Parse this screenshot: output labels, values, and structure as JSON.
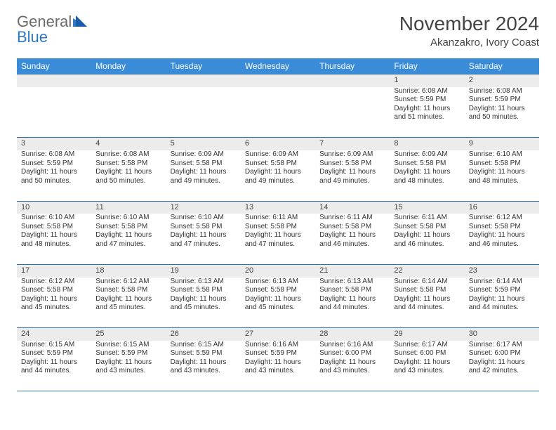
{
  "brand": {
    "general": "General",
    "blue": "Blue"
  },
  "title": "November 2024",
  "subtitle": "Akanzakro, Ivory Coast",
  "colors": {
    "header_bg": "#3a8bd8",
    "header_text": "#ffffff",
    "daynum_bg": "#ececec",
    "row_border": "#2f6fa8",
    "logo_blue": "#2f78c4",
    "text": "#333333"
  },
  "day_headers": [
    "Sunday",
    "Monday",
    "Tuesday",
    "Wednesday",
    "Thursday",
    "Friday",
    "Saturday"
  ],
  "weeks": [
    {
      "nums": [
        "",
        "",
        "",
        "",
        "",
        "1",
        "2"
      ],
      "cells": [
        {},
        {},
        {},
        {},
        {},
        {
          "sunrise": "Sunrise: 6:08 AM",
          "sunset": "Sunset: 5:59 PM",
          "daylight": "Daylight: 11 hours and 51 minutes."
        },
        {
          "sunrise": "Sunrise: 6:08 AM",
          "sunset": "Sunset: 5:59 PM",
          "daylight": "Daylight: 11 hours and 50 minutes."
        }
      ]
    },
    {
      "nums": [
        "3",
        "4",
        "5",
        "6",
        "7",
        "8",
        "9"
      ],
      "cells": [
        {
          "sunrise": "Sunrise: 6:08 AM",
          "sunset": "Sunset: 5:59 PM",
          "daylight": "Daylight: 11 hours and 50 minutes."
        },
        {
          "sunrise": "Sunrise: 6:08 AM",
          "sunset": "Sunset: 5:58 PM",
          "daylight": "Daylight: 11 hours and 50 minutes."
        },
        {
          "sunrise": "Sunrise: 6:09 AM",
          "sunset": "Sunset: 5:58 PM",
          "daylight": "Daylight: 11 hours and 49 minutes."
        },
        {
          "sunrise": "Sunrise: 6:09 AM",
          "sunset": "Sunset: 5:58 PM",
          "daylight": "Daylight: 11 hours and 49 minutes."
        },
        {
          "sunrise": "Sunrise: 6:09 AM",
          "sunset": "Sunset: 5:58 PM",
          "daylight": "Daylight: 11 hours and 49 minutes."
        },
        {
          "sunrise": "Sunrise: 6:09 AM",
          "sunset": "Sunset: 5:58 PM",
          "daylight": "Daylight: 11 hours and 48 minutes."
        },
        {
          "sunrise": "Sunrise: 6:10 AM",
          "sunset": "Sunset: 5:58 PM",
          "daylight": "Daylight: 11 hours and 48 minutes."
        }
      ]
    },
    {
      "nums": [
        "10",
        "11",
        "12",
        "13",
        "14",
        "15",
        "16"
      ],
      "cells": [
        {
          "sunrise": "Sunrise: 6:10 AM",
          "sunset": "Sunset: 5:58 PM",
          "daylight": "Daylight: 11 hours and 48 minutes."
        },
        {
          "sunrise": "Sunrise: 6:10 AM",
          "sunset": "Sunset: 5:58 PM",
          "daylight": "Daylight: 11 hours and 47 minutes."
        },
        {
          "sunrise": "Sunrise: 6:10 AM",
          "sunset": "Sunset: 5:58 PM",
          "daylight": "Daylight: 11 hours and 47 minutes."
        },
        {
          "sunrise": "Sunrise: 6:11 AM",
          "sunset": "Sunset: 5:58 PM",
          "daylight": "Daylight: 11 hours and 47 minutes."
        },
        {
          "sunrise": "Sunrise: 6:11 AM",
          "sunset": "Sunset: 5:58 PM",
          "daylight": "Daylight: 11 hours and 46 minutes."
        },
        {
          "sunrise": "Sunrise: 6:11 AM",
          "sunset": "Sunset: 5:58 PM",
          "daylight": "Daylight: 11 hours and 46 minutes."
        },
        {
          "sunrise": "Sunrise: 6:12 AM",
          "sunset": "Sunset: 5:58 PM",
          "daylight": "Daylight: 11 hours and 46 minutes."
        }
      ]
    },
    {
      "nums": [
        "17",
        "18",
        "19",
        "20",
        "21",
        "22",
        "23"
      ],
      "cells": [
        {
          "sunrise": "Sunrise: 6:12 AM",
          "sunset": "Sunset: 5:58 PM",
          "daylight": "Daylight: 11 hours and 45 minutes."
        },
        {
          "sunrise": "Sunrise: 6:12 AM",
          "sunset": "Sunset: 5:58 PM",
          "daylight": "Daylight: 11 hours and 45 minutes."
        },
        {
          "sunrise": "Sunrise: 6:13 AM",
          "sunset": "Sunset: 5:58 PM",
          "daylight": "Daylight: 11 hours and 45 minutes."
        },
        {
          "sunrise": "Sunrise: 6:13 AM",
          "sunset": "Sunset: 5:58 PM",
          "daylight": "Daylight: 11 hours and 45 minutes."
        },
        {
          "sunrise": "Sunrise: 6:13 AM",
          "sunset": "Sunset: 5:58 PM",
          "daylight": "Daylight: 11 hours and 44 minutes."
        },
        {
          "sunrise": "Sunrise: 6:14 AM",
          "sunset": "Sunset: 5:58 PM",
          "daylight": "Daylight: 11 hours and 44 minutes."
        },
        {
          "sunrise": "Sunrise: 6:14 AM",
          "sunset": "Sunset: 5:59 PM",
          "daylight": "Daylight: 11 hours and 44 minutes."
        }
      ]
    },
    {
      "nums": [
        "24",
        "25",
        "26",
        "27",
        "28",
        "29",
        "30"
      ],
      "cells": [
        {
          "sunrise": "Sunrise: 6:15 AM",
          "sunset": "Sunset: 5:59 PM",
          "daylight": "Daylight: 11 hours and 44 minutes."
        },
        {
          "sunrise": "Sunrise: 6:15 AM",
          "sunset": "Sunset: 5:59 PM",
          "daylight": "Daylight: 11 hours and 43 minutes."
        },
        {
          "sunrise": "Sunrise: 6:15 AM",
          "sunset": "Sunset: 5:59 PM",
          "daylight": "Daylight: 11 hours and 43 minutes."
        },
        {
          "sunrise": "Sunrise: 6:16 AM",
          "sunset": "Sunset: 5:59 PM",
          "daylight": "Daylight: 11 hours and 43 minutes."
        },
        {
          "sunrise": "Sunrise: 6:16 AM",
          "sunset": "Sunset: 6:00 PM",
          "daylight": "Daylight: 11 hours and 43 minutes."
        },
        {
          "sunrise": "Sunrise: 6:17 AM",
          "sunset": "Sunset: 6:00 PM",
          "daylight": "Daylight: 11 hours and 43 minutes."
        },
        {
          "sunrise": "Sunrise: 6:17 AM",
          "sunset": "Sunset: 6:00 PM",
          "daylight": "Daylight: 11 hours and 42 minutes."
        }
      ]
    }
  ]
}
